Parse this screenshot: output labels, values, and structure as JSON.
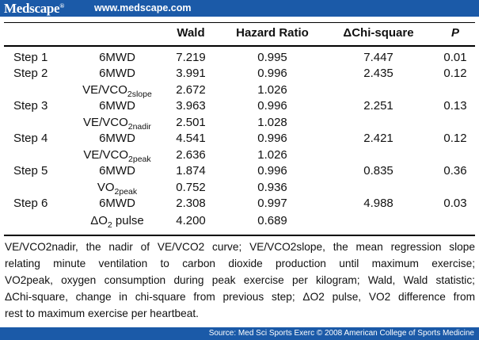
{
  "banner": {
    "brand": "Medscape",
    "brand_mark": "®",
    "url": "www.medscape.com"
  },
  "table": {
    "headers": {
      "wald": "Wald",
      "hazard_ratio": "Hazard Ratio",
      "delta_chi": "ΔChi-square",
      "p": "P"
    },
    "rows": [
      {
        "step": "Step 1",
        "variable": "6MWD",
        "wald": "7.219",
        "hr": "0.995",
        "dchi": "7.447",
        "p": "0.01"
      },
      {
        "step": "Step 2",
        "variable": "6MWD",
        "wald": "3.991",
        "hr": "0.996",
        "dchi": "2.435",
        "p": "0.12"
      },
      {
        "step": "",
        "variable_main": "VE/VCO",
        "variable_sub": "2slope",
        "wald": "2.672",
        "hr": "1.026",
        "dchi": "",
        "p": ""
      },
      {
        "step": "Step 3",
        "variable": "6MWD",
        "wald": "3.963",
        "hr": "0.996",
        "dchi": "2.251",
        "p": "0.13"
      },
      {
        "step": "",
        "variable_main": "VE/VCO",
        "variable_sub": "2nadir",
        "wald": "2.501",
        "hr": "1.028",
        "dchi": "",
        "p": ""
      },
      {
        "step": "Step 4",
        "variable": "6MWD",
        "wald": "4.541",
        "hr": "0.996",
        "dchi": "2.421",
        "p": "0.12"
      },
      {
        "step": "",
        "variable_main": "VE/VCO",
        "variable_sub": "2peak",
        "wald": "2.636",
        "hr": "1.026",
        "dchi": "",
        "p": ""
      },
      {
        "step": "Step 5",
        "variable": "6MWD",
        "wald": "1.874",
        "hr": "0.996",
        "dchi": "0.835",
        "p": "0.36"
      },
      {
        "step": "",
        "variable_main": "VO",
        "variable_sub": "2peak",
        "wald": "0.752",
        "hr": "0.936",
        "dchi": "",
        "p": ""
      },
      {
        "step": "Step 6",
        "variable": "6MWD",
        "wald": "2.308",
        "hr": "0.997",
        "dchi": "4.988",
        "p": "0.03"
      },
      {
        "step": "",
        "variable_main": "ΔO",
        "variable_sub": "2",
        "variable_tail": " pulse",
        "wald": "4.200",
        "hr": "0.689",
        "dchi": "",
        "p": ""
      }
    ]
  },
  "footnote": {
    "line1": "VE/VCO2nadir, the nadir of VE/VCO2 curve; VE/VCO2slope, the mean regression slope",
    "line2": "relating minute ventilation to carbon dioxide production until maximum exercise;",
    "line3": "VO2peak, oxygen consumption during peak exercise per kilogram; Wald, Wald statistic;",
    "line4": "ΔChi-square, change in chi-square from previous step; ΔO2 pulse, VO2 difference from",
    "line5": "rest to maximum exercise per heartbeat."
  },
  "source": {
    "text": "Source: Med Sci Sports Exerc © 2008 American College of Sports Medicine"
  }
}
